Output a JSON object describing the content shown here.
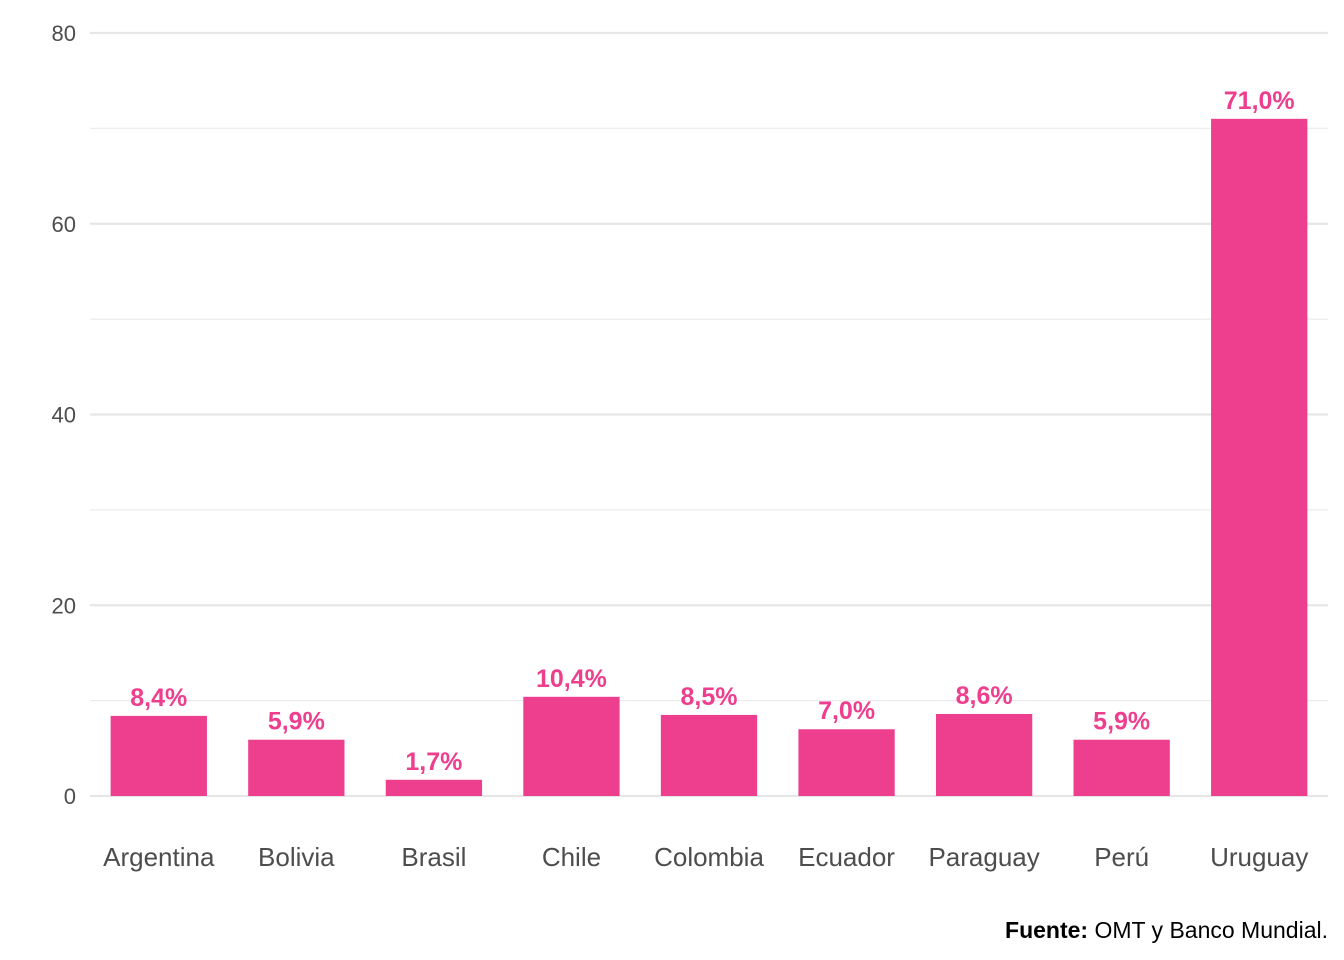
{
  "chart_data": {
    "type": "bar",
    "categories": [
      "Argentina",
      "Bolivia",
      "Brasil",
      "Chile",
      "Colombia",
      "Ecuador",
      "Paraguay",
      "Perú",
      "Uruguay"
    ],
    "values": [
      8.4,
      5.9,
      1.7,
      10.4,
      8.5,
      7.0,
      8.6,
      5.9,
      71.0
    ],
    "data_labels": [
      "8,4%",
      "5,9%",
      "1,7%",
      "10,4%",
      "8,5%",
      "7,0%",
      "8,6%",
      "5,9%",
      "71,0%"
    ],
    "yticks": [
      0,
      20,
      40,
      60,
      80
    ],
    "ylim": [
      0,
      80
    ],
    "grid": true,
    "bar_color": "#ee3e8e",
    "label_color": "#ee3e8e"
  },
  "source": {
    "label": "Fuente:",
    "text": " OMT y Banco Mundial."
  }
}
